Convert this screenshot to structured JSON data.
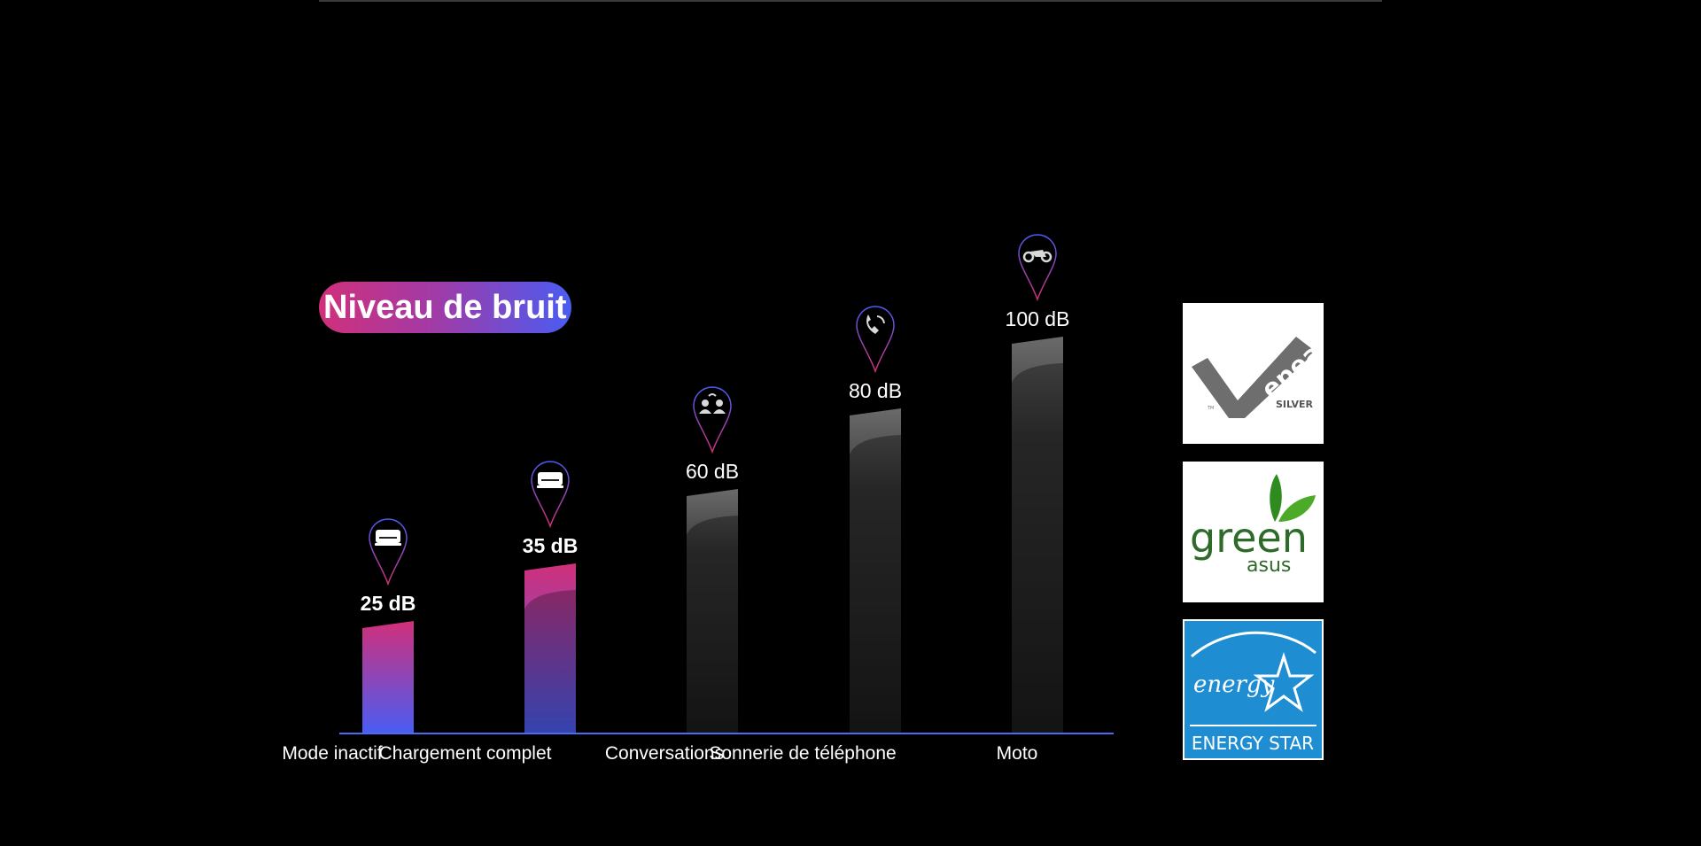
{
  "chart_data": {
    "type": "bar",
    "title": "Niveau de bruit",
    "categories": [
      "Mode inactif",
      "Chargement complet",
      "Conversations",
      "Sonnerie de téléphone",
      "Moto"
    ],
    "values": [
      25,
      35,
      60,
      80,
      100
    ],
    "value_labels": [
      "25 dB",
      "35 dB",
      "60 dB",
      "80 dB",
      "100 dB"
    ],
    "unit": "dB",
    "icons": [
      "laptop-icon",
      "laptop-icon",
      "people-talking-icon",
      "phone-ringing-icon",
      "motorcycle-icon"
    ],
    "highlighted": [
      true,
      true,
      false,
      false,
      false
    ],
    "ylim": [
      0,
      100
    ],
    "grid": false,
    "colors": {
      "highlight_top": "#d1307a",
      "highlight_bottom": "#4a5cf2",
      "gray_bar": "#3a3a3a",
      "baseline": "#4a6cf0",
      "pin_outline": "#4a5cf2",
      "pin_tip": "#d1307a"
    }
  },
  "certifications": [
    {
      "name": "epeat",
      "text": "epeat",
      "sub": "SILVER",
      "tm": "TM"
    },
    {
      "name": "green-asus",
      "text": "green",
      "sub": "asus"
    },
    {
      "name": "energy-star",
      "text": "energy",
      "sub": "ENERGY STAR"
    }
  ]
}
